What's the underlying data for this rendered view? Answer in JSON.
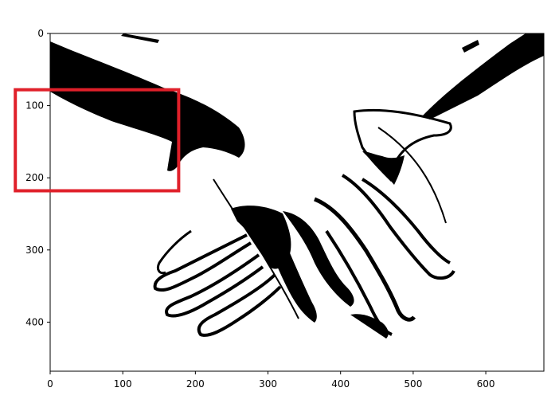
{
  "figure": {
    "image_description_icon": "hands-threshold-image",
    "x_ticks": [
      "0",
      "100",
      "200",
      "300",
      "400",
      "500",
      "600"
    ],
    "y_ticks": [
      "0",
      "100",
      "200",
      "300",
      "400"
    ],
    "x_tick_values": [
      0,
      100,
      200,
      300,
      400,
      500,
      600
    ],
    "y_tick_values": [
      0,
      100,
      200,
      300,
      400
    ],
    "x_range": [
      0,
      680
    ],
    "y_range": [
      0,
      468
    ],
    "highlight_color": "#e0202a",
    "highlight_region": {
      "x0": -48,
      "y0": 78,
      "x1": 177,
      "y1": 218
    }
  }
}
